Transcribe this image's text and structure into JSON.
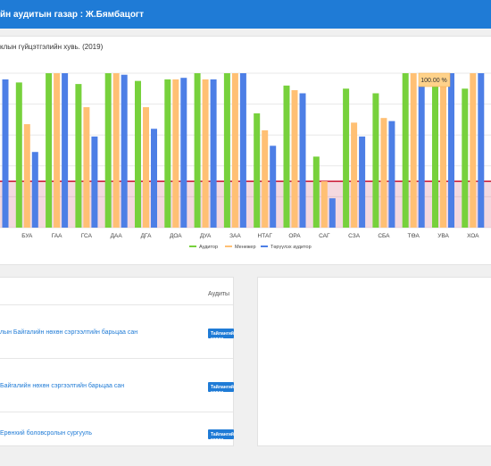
{
  "header": {
    "title": "йн аудитын газар : Ж.Бямбацогт"
  },
  "chart_title": "клын гүйцэтгэлийн хувь. (2019)",
  "chart_data": {
    "type": "bar",
    "categories": [
      "",
      "БУА",
      "ГАА",
      "ГСА",
      "ДАА",
      "ДГА",
      "ДОА",
      "ДУА",
      "ЗАА",
      "НТАГ",
      "ОРА",
      "САГ",
      "СЗА",
      "СБА",
      "ТӨА",
      "УВА",
      "ХОА",
      ""
    ],
    "series": [
      {
        "name": "Аудитор",
        "color": "#77d13c",
        "values": [
          null,
          94,
          100,
          93,
          100,
          95,
          96,
          100,
          100,
          74,
          92,
          46,
          90,
          87,
          100,
          94,
          90,
          94
        ]
      },
      {
        "name": "Менежер",
        "color": "#ffc074",
        "values": [
          null,
          67,
          100,
          78,
          100,
          78,
          96,
          96,
          100,
          63,
          89,
          30,
          68,
          71,
          100,
          99,
          100,
          95
        ]
      },
      {
        "name": "Төрүүлэх аудитор",
        "color": "#4d7fe6",
        "values": [
          96,
          49,
          100,
          59,
          99,
          64,
          97,
          96,
          100,
          53,
          87,
          19,
          59,
          69,
          92,
          100,
          100,
          96
        ]
      }
    ],
    "ylim": [
      0,
      100
    ],
    "threshold": 30,
    "tooltip": "100.00 %"
  },
  "list": {
    "column_header": "Аудиты",
    "rows": [
      {
        "name": "лын Байгалийн нөхөн сэргээлтийн барьцаа сан",
        "button": "Тайлангийг харах"
      },
      {
        "name": "Байгалийн нөхөн сэргээлтийн барьцаа сан",
        "button": "Тайлангийг харах"
      },
      {
        "name": "Ерөнхий боловсролын сургууль",
        "button": "Тайлангийг харах"
      }
    ]
  }
}
